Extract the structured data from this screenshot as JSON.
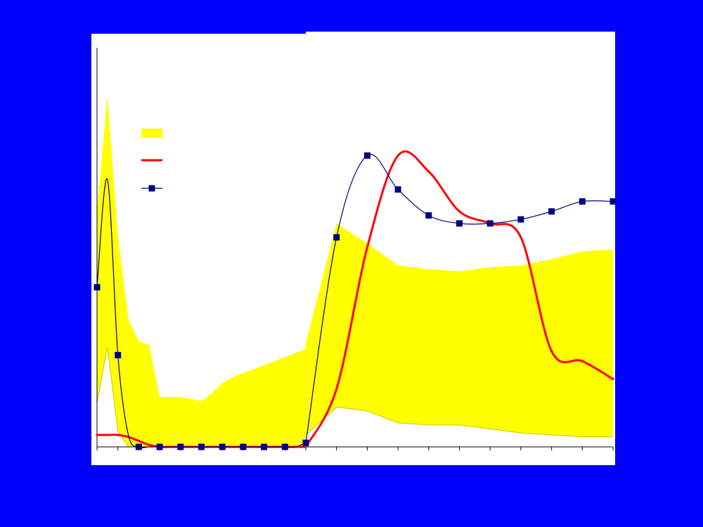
{
  "colors": {
    "background": "#0000FF",
    "panel": "#FFFFFF",
    "band": "#FFFF00",
    "red_line": "#FF0000",
    "marker_line": "#000080"
  },
  "chart_data": [
    {
      "type": "area",
      "title": "",
      "xlabel": "",
      "ylabel": "",
      "ylim": [
        0,
        100
      ],
      "legend": {
        "placement": "top-left",
        "entries": 3,
        "labels": [
          "",
          "",
          ""
        ]
      },
      "x": [
        0,
        0.5,
        1,
        1.5,
        2,
        2.5,
        3,
        3.5,
        4,
        4.5,
        5,
        5.5,
        6,
        6.5,
        7,
        7.5,
        8,
        8.5,
        9,
        9.5,
        10
      ],
      "series": [
        {
          "kind": "band",
          "lower": [
            11,
            25,
            4,
            0,
            0,
            0,
            0,
            0,
            0,
            0,
            0,
            0,
            0,
            0,
            0,
            0,
            0,
            0,
            0,
            0,
            0
          ],
          "upper": [
            59,
            88,
            53,
            32,
            26.5,
            25.5,
            12.5,
            12.5,
            12.5,
            12,
            11.5,
            13.5,
            16,
            17.5,
            18.5,
            19.5,
            20.5,
            21.5,
            22.5,
            23.5,
            24.5
          ]
        },
        {
          "kind": "line",
          "values": [
            3,
            3,
            3,
            2.5,
            1.5,
            0.5,
            0,
            0,
            0,
            0,
            0,
            0,
            0,
            0,
            0,
            0,
            0,
            0,
            0,
            0,
            0
          ]
        },
        {
          "kind": "line-markers",
          "values": [
            40,
            67,
            23,
            3,
            0,
            0,
            0,
            0,
            0,
            0,
            0,
            0,
            0,
            0,
            0,
            0,
            0,
            0,
            0,
            0,
            1
          ]
        }
      ]
    },
    {
      "type": "area",
      "title": "",
      "xlabel": "",
      "ylabel": "",
      "ylim": [
        0,
        100
      ],
      "x": [
        0,
        1,
        2,
        3,
        4,
        5,
        6,
        7,
        8,
        9,
        10
      ],
      "series": [
        {
          "kind": "band",
          "lower": [
            3,
            10,
            9,
            6,
            5.5,
            5.5,
            4.5,
            3.5,
            3,
            2.5,
            2.5
          ],
          "upper": [
            26,
            56,
            51,
            45.5,
            44.5,
            44,
            45,
            45.5,
            47,
            49,
            49.5
          ]
        },
        {
          "kind": "line",
          "values": [
            0,
            14.5,
            50,
            73,
            69,
            59,
            56,
            52.5,
            24,
            21.5,
            17
          ]
        },
        {
          "kind": "line-markers",
          "values": [
            1,
            52.5,
            73,
            64.5,
            58,
            56,
            56,
            57,
            59,
            61.5,
            61.5
          ]
        }
      ]
    }
  ]
}
